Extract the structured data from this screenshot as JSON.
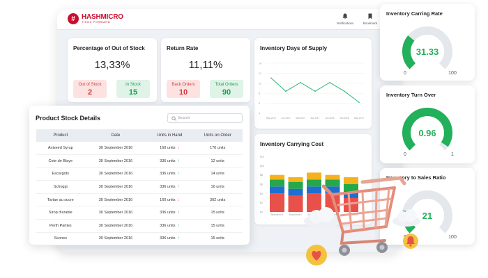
{
  "brand": {
    "name": "HASHMICRO",
    "tagline": "THINK FORWARD",
    "color": "#c8102e"
  },
  "topbar": {
    "notifications_label": "Notifications",
    "bookmark_label": "Bookmark"
  },
  "out_of_stock": {
    "title": "Percentage of Out of Stock",
    "value": "13,33%",
    "left_label": "Out of Stock",
    "left_value": "2",
    "right_label": "In Stock",
    "right_value": "15"
  },
  "return_rate": {
    "title": "Return Rate",
    "value": "11,11%",
    "left_label": "Back Orders",
    "left_value": "10",
    "right_label": "Total Orders",
    "right_value": "90"
  },
  "days_supply": {
    "title": "Inventory Days of Supply",
    "chart_data": {
      "type": "line",
      "categories": [
        "May 2017",
        "Jun 2017",
        "Mar 2017",
        "Apr 2017",
        "Jun 2015",
        "Jan 2016",
        "May 2017"
      ],
      "ytick_labels": [
        "14",
        "12",
        "10",
        "8",
        "6",
        "4"
      ],
      "values": [
        11,
        8,
        10,
        8,
        10,
        8,
        5.5
      ],
      "ylim": [
        3,
        15
      ],
      "color": "#2bb673"
    }
  },
  "carrying_cost": {
    "title": "Inventory Carrying Cost",
    "chart_data": {
      "type": "bar",
      "stacked": true,
      "categories": [
        "Beachfront 1",
        "Beachfront 2",
        "Beachfront 3",
        "Beachfront 4",
        "Beachfront 5"
      ],
      "ytick_labels": [
        "$0",
        "$2",
        "$4",
        "$6",
        "$8",
        "$10",
        "$12"
      ],
      "ylim": [
        0,
        12
      ],
      "series": [
        {
          "color": "#e8514a",
          "values": [
            4,
            3.5,
            4,
            4,
            3
          ]
        },
        {
          "color": "#1f6fd1",
          "values": [
            1.5,
            1.5,
            1.5,
            1.5,
            1.5
          ]
        },
        {
          "color": "#25a84a",
          "values": [
            1.5,
            1.5,
            1.5,
            1.5,
            1.5
          ]
        },
        {
          "color": "#f5b21c",
          "values": [
            1,
            1,
            1.5,
            1,
            1.5
          ]
        }
      ]
    }
  },
  "gauges": [
    {
      "title": "Inventory Carring Rate",
      "value": "31.33",
      "min": "0",
      "max": "100",
      "fraction": 0.3133
    },
    {
      "title": "Inventory Turn Over",
      "value": "0.96",
      "min": "0",
      "max": "1",
      "fraction": 0.96
    },
    {
      "title": "Inventory to Sales Ratio",
      "value": "21",
      "min": "0",
      "max": "100",
      "fraction": 0.21
    }
  ],
  "stock": {
    "title": "Product Stock Details",
    "search_placeholder": "Search",
    "columns": [
      "Product",
      "Date",
      "Units in Hand",
      "Units on Order"
    ],
    "rows": [
      {
        "product": "Aniseed Syrup",
        "date": "30 September 2016",
        "hand": "160 units",
        "trend": "down",
        "order": "170 units"
      },
      {
        "product": "Cote de Blaye",
        "date": "30 September 2016",
        "hand": "336 units",
        "trend": "up",
        "order": "12 units"
      },
      {
        "product": "Escargots",
        "date": "30 September 2016",
        "hand": "336 units",
        "trend": "up",
        "order": "14 units"
      },
      {
        "product": "Schoggi",
        "date": "30 September 2016",
        "hand": "336 units",
        "trend": "up",
        "order": "16 units"
      },
      {
        "product": "Tartae au sucre",
        "date": "30 September 2016",
        "hand": "160 units",
        "trend": "down",
        "order": "302 units"
      },
      {
        "product": "Sirop d'erable",
        "date": "30 September 2016",
        "hand": "336 units",
        "trend": "up",
        "order": "15 units"
      },
      {
        "product": "Perth Parties",
        "date": "30 September 2016",
        "hand": "336 units",
        "trend": "up",
        "order": "15 units"
      },
      {
        "product": "Scones",
        "date": "30 September 2016",
        "hand": "336 units",
        "trend": "up",
        "order": "15 units"
      }
    ]
  },
  "colors": {
    "green": "#1e9e55",
    "red": "#d23a3a",
    "gauge_green": "#22b05a",
    "gauge_track": "#e4e7eb"
  }
}
